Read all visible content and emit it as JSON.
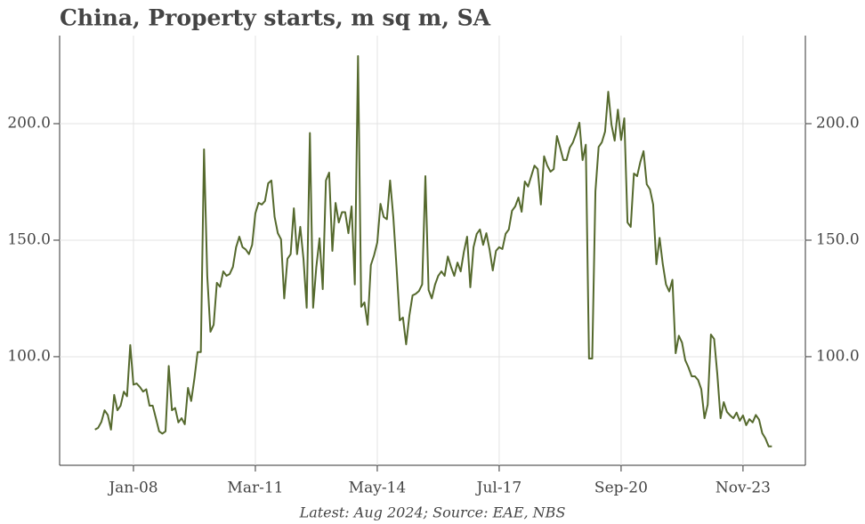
{
  "chart_data": {
    "type": "line",
    "title": "China, Property starts, m sq m, SA",
    "footer": "Latest: Aug 2024; Source: EAE, NBS",
    "categories": [
      "Jan-07",
      "Feb-07",
      "Mar-07",
      "Apr-07",
      "May-07",
      "Jun-07",
      "Jul-07",
      "Aug-07",
      "Sep-07",
      "Oct-07",
      "Nov-07",
      "Dec-07",
      "Jan-08",
      "Feb-08",
      "Mar-08",
      "Apr-08",
      "May-08",
      "Jun-08",
      "Jul-08",
      "Aug-08",
      "Sep-08",
      "Oct-08",
      "Nov-08",
      "Dec-08",
      "Jan-09",
      "Feb-09",
      "Mar-09",
      "Apr-09",
      "May-09",
      "Jun-09",
      "Jul-09",
      "Aug-09",
      "Sep-09",
      "Oct-09",
      "Nov-09",
      "Dec-09",
      "Jan-10",
      "Feb-10",
      "Mar-10",
      "Apr-10",
      "May-10",
      "Jun-10",
      "Jul-10",
      "Aug-10",
      "Sep-10",
      "Oct-10",
      "Nov-10",
      "Dec-10",
      "Jan-11",
      "Feb-11",
      "Mar-11",
      "Apr-11",
      "May-11",
      "Jun-11",
      "Jul-11",
      "Aug-11",
      "Sep-11",
      "Oct-11",
      "Nov-11",
      "Dec-11",
      "Jan-12",
      "Feb-12",
      "Mar-12",
      "Apr-12",
      "May-12",
      "Jun-12",
      "Jul-12",
      "Aug-12",
      "Sep-12",
      "Oct-12",
      "Nov-12",
      "Dec-12",
      "Jan-13",
      "Feb-13",
      "Mar-13",
      "Apr-13",
      "May-13",
      "Jun-13",
      "Jul-13",
      "Aug-13",
      "Sep-13",
      "Oct-13",
      "Nov-13",
      "Dec-13",
      "Jan-14",
      "Feb-14",
      "Mar-14",
      "Apr-14",
      "May-14",
      "Jun-14",
      "Jul-14",
      "Aug-14",
      "Sep-14",
      "Oct-14",
      "Nov-14",
      "Dec-14",
      "Jan-15",
      "Feb-15",
      "Mar-15",
      "Apr-15",
      "May-15",
      "Jun-15",
      "Jul-15",
      "Aug-15",
      "Sep-15",
      "Oct-15",
      "Nov-15",
      "Dec-15",
      "Jan-16",
      "Feb-16",
      "Mar-16",
      "Apr-16",
      "May-16",
      "Jun-16",
      "Jul-16",
      "Aug-16",
      "Sep-16",
      "Oct-16",
      "Nov-16",
      "Dec-16",
      "Jan-17",
      "Feb-17",
      "Mar-17",
      "Apr-17",
      "May-17",
      "Jun-17",
      "Jul-17",
      "Aug-17",
      "Sep-17",
      "Oct-17",
      "Nov-17",
      "Dec-17",
      "Jan-18",
      "Feb-18",
      "Mar-18",
      "Apr-18",
      "May-18",
      "Jun-18",
      "Jul-18",
      "Aug-18",
      "Sep-18",
      "Oct-18",
      "Nov-18",
      "Dec-18",
      "Jan-19",
      "Feb-19",
      "Mar-19",
      "Apr-19",
      "May-19",
      "Jun-19",
      "Jul-19",
      "Aug-19",
      "Sep-19",
      "Oct-19",
      "Nov-19",
      "Dec-19",
      "Jan-20",
      "Feb-20",
      "Mar-20",
      "Apr-20",
      "May-20",
      "Jun-20",
      "Jul-20",
      "Aug-20",
      "Sep-20",
      "Oct-20",
      "Nov-20",
      "Dec-20",
      "Jan-21",
      "Feb-21",
      "Mar-21",
      "Apr-21",
      "May-21",
      "Jun-21",
      "Jul-21",
      "Aug-21",
      "Sep-21",
      "Oct-21",
      "Nov-21",
      "Dec-21",
      "Jan-22",
      "Feb-22",
      "Mar-22",
      "Apr-22",
      "May-22",
      "Jun-22",
      "Jul-22",
      "Aug-22",
      "Sep-22",
      "Oct-22",
      "Nov-22",
      "Dec-22",
      "Jan-23",
      "Feb-23",
      "Mar-23",
      "Apr-23",
      "May-23",
      "Jun-23",
      "Jul-23",
      "Aug-23",
      "Sep-23",
      "Oct-23",
      "Nov-23",
      "Dec-23",
      "Jan-24",
      "Feb-24",
      "Mar-24",
      "Apr-24",
      "May-24",
      "Jun-24",
      "Jul-24",
      "Aug-24"
    ],
    "values": [
      68.7,
      69.5,
      72,
      77,
      75,
      68.7,
      83.6,
      77,
      79,
      85,
      83,
      105,
      88,
      88.5,
      87,
      85,
      86,
      79,
      79,
      73.6,
      68,
      67,
      68,
      96,
      77,
      78,
      71.8,
      73.6,
      71,
      86.6,
      81,
      90.6,
      102,
      102,
      189,
      134.7,
      110.7,
      113.7,
      131.7,
      130,
      136.6,
      134.7,
      135.5,
      138.5,
      147,
      151.5,
      147,
      146,
      144,
      148,
      161.5,
      166,
      165.3,
      166.8,
      174.4,
      175.6,
      160,
      153,
      150.4,
      125,
      142,
      144,
      163.7,
      144,
      155.7,
      142,
      121,
      196,
      121,
      138.5,
      150.8,
      129,
      175.6,
      179,
      145.4,
      166,
      157.6,
      162,
      162,
      153,
      164.5,
      131,
      229,
      121.4,
      123.3,
      113.7,
      139.3,
      143.5,
      149,
      165.6,
      160,
      159,
      175.6,
      160,
      138.5,
      115.6,
      116.8,
      105.3,
      117.6,
      126.3,
      127,
      128.2,
      131,
      177.5,
      128.6,
      125,
      130.9,
      134.7,
      136.6,
      134.7,
      143,
      138.5,
      134.7,
      140.4,
      136.6,
      145,
      151.5,
      129.8,
      147,
      152.7,
      154.6,
      148,
      153,
      146,
      137,
      145.4,
      147,
      146.2,
      152.7,
      154.6,
      162.6,
      164.5,
      168.3,
      162.2,
      175.2,
      173,
      177.5,
      182,
      180.5,
      165.3,
      186,
      182,
      179.4,
      180.5,
      194.7,
      189.7,
      184.4,
      184.4,
      189.7,
      192,
      195.8,
      200.4,
      184.4,
      191,
      99.2,
      99.2,
      171,
      190,
      192,
      196.6,
      213.7,
      199.6,
      192.7,
      206,
      193,
      202.3,
      157.6,
      155.7,
      178.6,
      177.5,
      183.6,
      188.2,
      174,
      171.8,
      165.3,
      139.7,
      151,
      139.7,
      131,
      128,
      133,
      101.5,
      109,
      106,
      98.5,
      95.4,
      91.6,
      91.6,
      90,
      86,
      73.6,
      79.4,
      109.5,
      107.6,
      92.4,
      73.6,
      80.5,
      76.3,
      74.8,
      73.6,
      76,
      72.5,
      74.8,
      70.6,
      73.2,
      71.8,
      75,
      73,
      67.2,
      64.9,
      61.5,
      61.5
    ],
    "color": "#55692d",
    "xticks": [
      "Jan-08",
      "Mar-11",
      "May-14",
      "Jul-17",
      "Sep-20",
      "Nov-23"
    ],
    "ylim": [
      53.4,
      237.8
    ],
    "yticks": [
      {
        "value": 100,
        "label": "100.0"
      },
      {
        "value": 150,
        "label": "150.0"
      },
      {
        "value": 200,
        "label": "200.0"
      }
    ],
    "grid": true
  }
}
